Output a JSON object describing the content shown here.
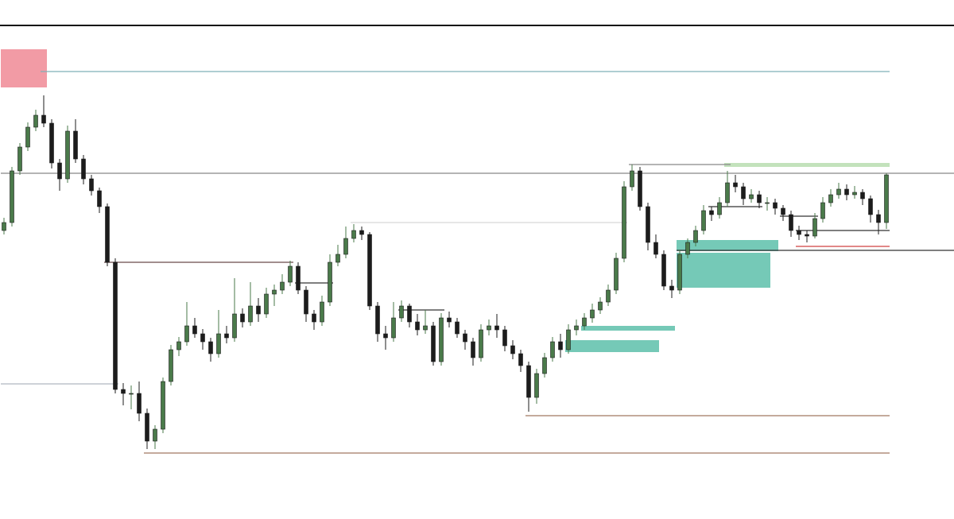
{
  "chart_data": {
    "type": "candlestick",
    "up_color": "#4a7a4a",
    "down_color": "#1c1c1c",
    "ylim": [
      0,
      600
    ],
    "ohlc": [
      [
        330,
        346,
        325,
        340
      ],
      [
        340,
        410,
        335,
        405
      ],
      [
        405,
        440,
        400,
        435
      ],
      [
        435,
        466,
        430,
        460
      ],
      [
        460,
        482,
        455,
        475
      ],
      [
        475,
        500,
        460,
        465
      ],
      [
        465,
        470,
        408,
        415
      ],
      [
        415,
        420,
        380,
        395
      ],
      [
        395,
        462,
        390,
        455
      ],
      [
        455,
        470,
        415,
        420
      ],
      [
        420,
        425,
        388,
        395
      ],
      [
        395,
        400,
        374,
        380
      ],
      [
        380,
        384,
        352,
        360
      ],
      [
        360,
        364,
        285,
        290
      ],
      [
        290,
        295,
        125,
        130
      ],
      [
        130,
        138,
        110,
        125
      ],
      [
        125,
        135,
        105,
        125
      ],
      [
        125,
        140,
        90,
        100
      ],
      [
        100,
        106,
        55,
        65
      ],
      [
        65,
        85,
        55,
        80
      ],
      [
        80,
        145,
        75,
        140
      ],
      [
        140,
        186,
        135,
        180
      ],
      [
        180,
        196,
        172,
        190
      ],
      [
        190,
        240,
        185,
        210
      ],
      [
        210,
        220,
        195,
        200
      ],
      [
        200,
        206,
        180,
        190
      ],
      [
        190,
        195,
        165,
        175
      ],
      [
        175,
        230,
        170,
        200
      ],
      [
        200,
        210,
        188,
        195
      ],
      [
        195,
        270,
        190,
        225
      ],
      [
        225,
        232,
        208,
        215
      ],
      [
        215,
        265,
        210,
        235
      ],
      [
        235,
        245,
        215,
        225
      ],
      [
        225,
        258,
        220,
        250
      ],
      [
        250,
        262,
        235,
        255
      ],
      [
        255,
        275,
        250,
        265
      ],
      [
        265,
        292,
        260,
        285
      ],
      [
        285,
        290,
        250,
        255
      ],
      [
        255,
        260,
        215,
        225
      ],
      [
        225,
        230,
        205,
        215
      ],
      [
        215,
        248,
        210,
        240
      ],
      [
        240,
        300,
        235,
        290
      ],
      [
        290,
        312,
        285,
        300
      ],
      [
        300,
        335,
        295,
        320
      ],
      [
        320,
        338,
        315,
        330
      ],
      [
        330,
        335,
        318,
        325
      ],
      [
        325,
        328,
        230,
        235
      ],
      [
        235,
        240,
        190,
        200
      ],
      [
        200,
        210,
        180,
        195
      ],
      [
        195,
        240,
        190,
        220
      ],
      [
        220,
        242,
        215,
        235
      ],
      [
        235,
        238,
        208,
        215
      ],
      [
        215,
        225,
        198,
        205
      ],
      [
        205,
        230,
        200,
        210
      ],
      [
        210,
        215,
        160,
        165
      ],
      [
        165,
        226,
        160,
        220
      ],
      [
        220,
        228,
        208,
        215
      ],
      [
        215,
        220,
        195,
        200
      ],
      [
        200,
        205,
        180,
        190
      ],
      [
        190,
        195,
        160,
        170
      ],
      [
        170,
        212,
        165,
        205
      ],
      [
        205,
        218,
        198,
        210
      ],
      [
        210,
        225,
        195,
        205
      ],
      [
        205,
        210,
        178,
        185
      ],
      [
        185,
        192,
        168,
        175
      ],
      [
        175,
        180,
        152,
        160
      ],
      [
        160,
        165,
        102,
        120
      ],
      [
        120,
        156,
        112,
        150
      ],
      [
        150,
        176,
        145,
        170
      ],
      [
        170,
        196,
        165,
        190
      ],
      [
        190,
        200,
        170,
        180
      ],
      [
        180,
        212,
        175,
        205
      ],
      [
        205,
        218,
        198,
        210
      ],
      [
        210,
        226,
        205,
        220
      ],
      [
        220,
        238,
        214,
        230
      ],
      [
        230,
        246,
        225,
        240
      ],
      [
        240,
        262,
        235,
        255
      ],
      [
        255,
        302,
        250,
        295
      ],
      [
        295,
        392,
        290,
        385
      ],
      [
        385,
        413,
        380,
        405
      ],
      [
        405,
        410,
        355,
        360
      ],
      [
        360,
        365,
        305,
        315
      ],
      [
        315,
        325,
        295,
        300
      ],
      [
        300,
        305,
        255,
        260
      ],
      [
        260,
        268,
        245,
        255
      ],
      [
        255,
        306,
        250,
        300
      ],
      [
        300,
        320,
        295,
        315
      ],
      [
        315,
        336,
        310,
        330
      ],
      [
        330,
        362,
        325,
        355
      ],
      [
        355,
        360,
        342,
        350
      ],
      [
        350,
        372,
        345,
        365
      ],
      [
        365,
        405,
        360,
        390
      ],
      [
        390,
        400,
        378,
        385
      ],
      [
        385,
        390,
        362,
        370
      ],
      [
        370,
        382,
        365,
        375
      ],
      [
        375,
        380,
        358,
        365
      ],
      [
        365,
        372,
        355,
        365
      ],
      [
        365,
        370,
        350,
        358
      ],
      [
        358,
        362,
        342,
        350
      ],
      [
        350,
        355,
        322,
        330
      ],
      [
        330,
        336,
        318,
        325
      ],
      [
        325,
        330,
        315,
        323
      ],
      [
        323,
        352,
        320,
        345
      ],
      [
        345,
        372,
        340,
        365
      ],
      [
        365,
        382,
        360,
        375
      ],
      [
        375,
        390,
        370,
        382
      ],
      [
        382,
        388,
        368,
        375
      ],
      [
        375,
        386,
        370,
        378
      ],
      [
        378,
        382,
        362,
        370
      ],
      [
        370,
        374,
        340,
        350
      ],
      [
        350,
        356,
        325,
        340
      ],
      [
        340,
        402,
        332,
        400
      ]
    ],
    "zones": [
      {
        "from": 0,
        "to": 5,
        "low": 510,
        "high": 558,
        "color": "#f08a95"
      },
      {
        "from": 85,
        "to": 97,
        "low": 304,
        "high": 318,
        "color": "#5dbfaa"
      },
      {
        "from": 85,
        "to": 96,
        "low": 258,
        "high": 302,
        "color": "#5dbfaa"
      },
      {
        "from": 73,
        "to": 84,
        "low": 204,
        "high": 210,
        "color": "#5dbfaa"
      },
      {
        "from": 71,
        "to": 82,
        "low": 177,
        "high": 192,
        "color": "#5dbfaa"
      },
      {
        "from": 91,
        "to": 111,
        "low": 410,
        "high": 415,
        "color": "#b8ddb0"
      }
    ],
    "lines": [
      {
        "from": 5,
        "to": 111,
        "value": 530,
        "color": "#7fb0b8"
      },
      {
        "from": 0,
        "to": 120,
        "value": 402,
        "color": "#888888"
      },
      {
        "from": 85,
        "to": 120,
        "value": 305,
        "color": "#333333"
      },
      {
        "from": 13,
        "to": 36,
        "value": 290,
        "color": "#6a4a4a"
      },
      {
        "from": 0,
        "to": 14,
        "value": 137,
        "color": "#b0b8c0"
      },
      {
        "from": 18,
        "to": 111,
        "value": 50,
        "color": "#a07860"
      },
      {
        "from": 66,
        "to": 111,
        "value": 97,
        "color": "#a07860"
      },
      {
        "from": 44,
        "to": 78,
        "value": 340,
        "color": "#d8d8d8"
      },
      {
        "from": 79,
        "to": 91,
        "value": 413,
        "color": "#888888"
      },
      {
        "from": 100,
        "to": 111,
        "value": 310,
        "color": "#d04040"
      },
      {
        "from": 100,
        "to": 111,
        "value": 330,
        "color": "#333333"
      },
      {
        "from": 37,
        "to": 41,
        "value": 264,
        "color": "#333333"
      },
      {
        "from": 50,
        "to": 55,
        "value": 230,
        "color": "#333333"
      },
      {
        "from": 98,
        "to": 102,
        "value": 348,
        "color": "#333333"
      },
      {
        "from": 89,
        "to": 95,
        "value": 360,
        "color": "#333333"
      }
    ]
  }
}
